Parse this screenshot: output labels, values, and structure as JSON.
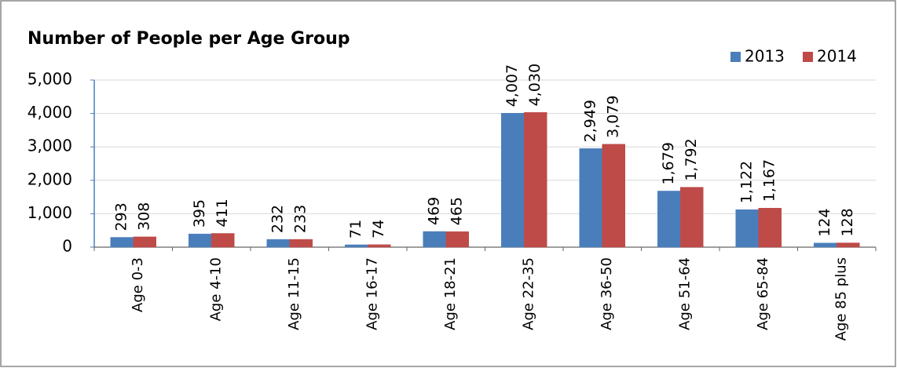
{
  "chart_data": {
    "type": "bar",
    "title": "Number of People per Age Group",
    "categories": [
      "Age 0-3",
      "Age 4-10",
      "Age 11-15",
      "Age 16-17",
      "Age 18-21",
      "Age 22-35",
      "Age 36-50",
      "Age 51-64",
      "Age 65-84",
      "Age 85 plus"
    ],
    "series": [
      {
        "name": "2013",
        "color": "#4a7ebb",
        "values": [
          293,
          395,
          232,
          71,
          469,
          4007,
          2949,
          1679,
          1122,
          124
        ],
        "value_labels": [
          "293",
          "395",
          "232",
          "71",
          "469",
          "4,007",
          "2,949",
          "1,679",
          "1,122",
          "124"
        ]
      },
      {
        "name": "2014",
        "color": "#be4b48",
        "values": [
          308,
          411,
          233,
          74,
          465,
          4030,
          3079,
          1792,
          1167,
          128
        ],
        "value_labels": [
          "308",
          "411",
          "233",
          "74",
          "465",
          "4,030",
          "3,079",
          "1,792",
          "1,167",
          "128"
        ]
      }
    ],
    "ylim": [
      0,
      5000
    ],
    "yticks": [
      0,
      {
        "value": 1000,
        "label": "1,000"
      },
      {
        "value": 2000,
        "label": "2,000"
      },
      {
        "value": 3000,
        "label": "3,000"
      },
      {
        "value": 4000,
        "label": "4,000"
      },
      {
        "value": 5000,
        "label": "5,000"
      }
    ],
    "grid": true,
    "legend": "top-right"
  }
}
